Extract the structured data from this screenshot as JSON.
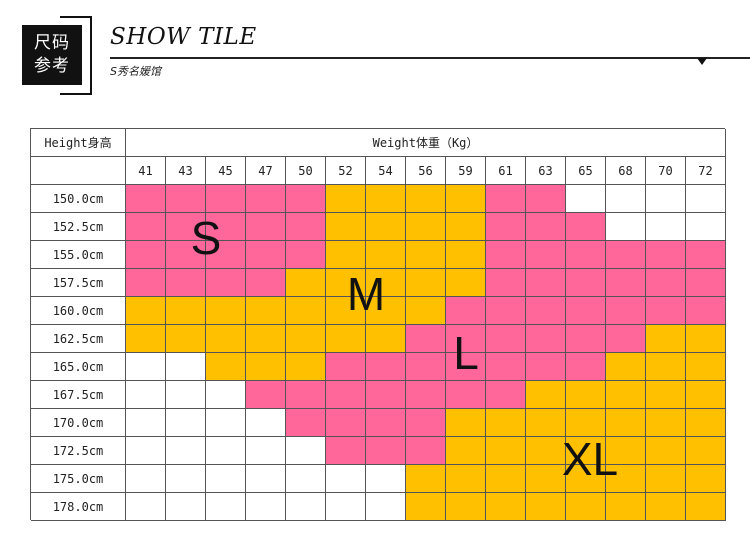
{
  "header": {
    "badge_line1": "尺码",
    "badge_line2": "参考",
    "brand": "SHOW TILE",
    "subtitle": "S秀名媛馆"
  },
  "chart_data": {
    "type": "table",
    "row_header": "Height身高",
    "column_header": "Weight体重（Kg）",
    "weights": [
      "41",
      "43",
      "45",
      "47",
      "50",
      "52",
      "54",
      "56",
      "59",
      "61",
      "63",
      "65",
      "68",
      "70",
      "72"
    ],
    "heights": [
      "150.0cm",
      "152.5cm",
      "155.0cm",
      "157.5cm",
      "160.0cm",
      "162.5cm",
      "165.0cm",
      "167.5cm",
      "170.0cm",
      "172.5cm",
      "175.0cm",
      "178.0cm"
    ],
    "sizes": [
      "S",
      "M",
      "L",
      "XL"
    ],
    "grid": [
      [
        "S",
        "S",
        "S",
        "S",
        "S",
        "M",
        "M",
        "M",
        "M",
        "L",
        "L",
        "",
        "",
        "",
        ""
      ],
      [
        "S",
        "S",
        "S",
        "S",
        "S",
        "M",
        "M",
        "M",
        "M",
        "L",
        "L",
        "L",
        "",
        "",
        ""
      ],
      [
        "S",
        "S",
        "S",
        "S",
        "S",
        "M",
        "M",
        "M",
        "M",
        "L",
        "L",
        "L",
        "L",
        "L",
        "L"
      ],
      [
        "S",
        "S",
        "S",
        "S",
        "M",
        "M",
        "M",
        "M",
        "M",
        "L",
        "L",
        "L",
        "L",
        "L",
        "L"
      ],
      [
        "M",
        "M",
        "M",
        "M",
        "M",
        "M",
        "M",
        "M",
        "L",
        "L",
        "L",
        "L",
        "L",
        "L",
        "L"
      ],
      [
        "M",
        "M",
        "M",
        "M",
        "M",
        "M",
        "M",
        "L",
        "L",
        "L",
        "L",
        "L",
        "L",
        "XL",
        "XL"
      ],
      [
        "",
        "",
        "M",
        "M",
        "M",
        "L",
        "L",
        "L",
        "L",
        "L",
        "L",
        "L",
        "XL",
        "XL",
        "XL"
      ],
      [
        "",
        "",
        "",
        "L",
        "L",
        "L",
        "L",
        "L",
        "L",
        "L",
        "XL",
        "XL",
        "XL",
        "XL",
        "XL"
      ],
      [
        "",
        "",
        "",
        "",
        "L",
        "L",
        "L",
        "L",
        "XL",
        "XL",
        "XL",
        "XL",
        "XL",
        "XL",
        "XL"
      ],
      [
        "",
        "",
        "",
        "",
        "",
        "L",
        "L",
        "L",
        "XL",
        "XL",
        "XL",
        "XL",
        "XL",
        "XL",
        "XL"
      ],
      [
        "",
        "",
        "",
        "",
        "",
        "",
        "",
        "XL",
        "XL",
        "XL",
        "XL",
        "XL",
        "XL",
        "XL",
        "XL"
      ],
      [
        "",
        "",
        "",
        "",
        "",
        "",
        "",
        "XL",
        "XL",
        "XL",
        "XL",
        "XL",
        "XL",
        "XL",
        "XL"
      ]
    ],
    "colors": {
      "S": "#ff6699",
      "M": "#ffc000",
      "L": "#ff6699",
      "XL": "#ffc000",
      "empty": "#ffffff"
    }
  }
}
